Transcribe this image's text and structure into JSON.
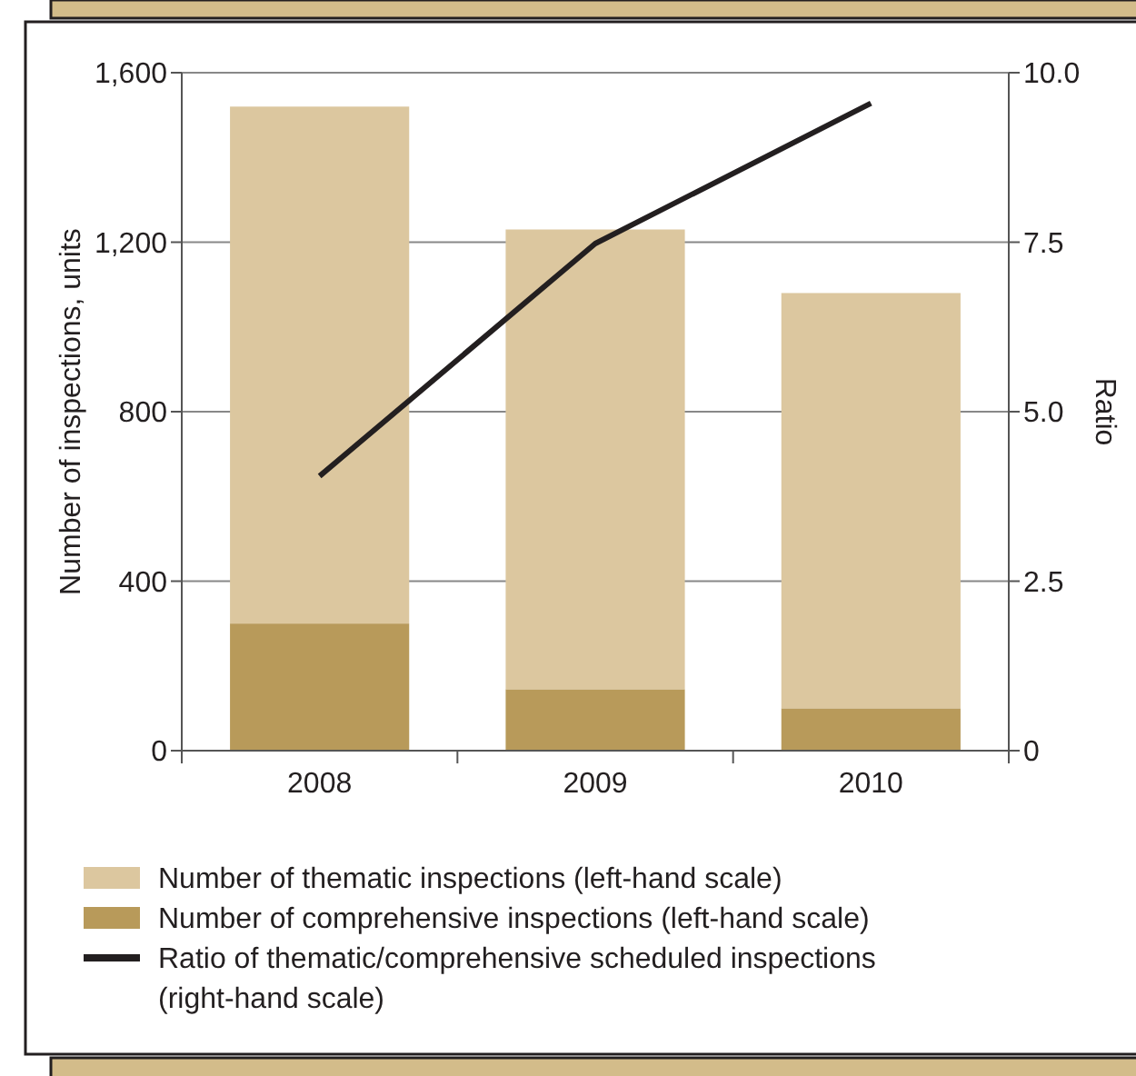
{
  "chart_data": {
    "type": "bar",
    "stacked": true,
    "categories": [
      "2008",
      "2009",
      "2010"
    ],
    "series": [
      {
        "name": "Number of comprehensive inspections (left-hand scale)",
        "color": "#b89a5a",
        "values": [
          300,
          145,
          100
        ]
      },
      {
        "name": "Number of thematic inspections (left-hand scale)",
        "color": "#dcc79f",
        "values": [
          1220,
          1085,
          980
        ]
      },
      {
        "name": "Ratio of thematic/comprehensive scheduled inspections (right-hand scale)",
        "type": "line",
        "axis": "y2",
        "color": "#231f20",
        "values": [
          4.05,
          7.48,
          9.55
        ]
      }
    ],
    "ylabel": "Number of inspections, units",
    "y2label": "Ratio",
    "ylim": [
      0,
      1600
    ],
    "yticks": [
      {
        "value": 0,
        "label": "0"
      },
      {
        "value": 400,
        "label": "400"
      },
      {
        "value": 800,
        "label": "800"
      },
      {
        "value": 1200,
        "label": "1,200"
      },
      {
        "value": 1600,
        "label": "1,600"
      }
    ],
    "y2lim": [
      0,
      10
    ],
    "y2ticks": [
      {
        "value": 0,
        "label": "0"
      },
      {
        "value": 2.5,
        "label": "2.5"
      },
      {
        "value": 5,
        "label": "5.0"
      },
      {
        "value": 7.5,
        "label": "7.5"
      },
      {
        "value": 10,
        "label": "10.0"
      }
    ],
    "grid": "y",
    "legend": "bottom",
    "marker": "none",
    "line_style": "solid"
  }
}
